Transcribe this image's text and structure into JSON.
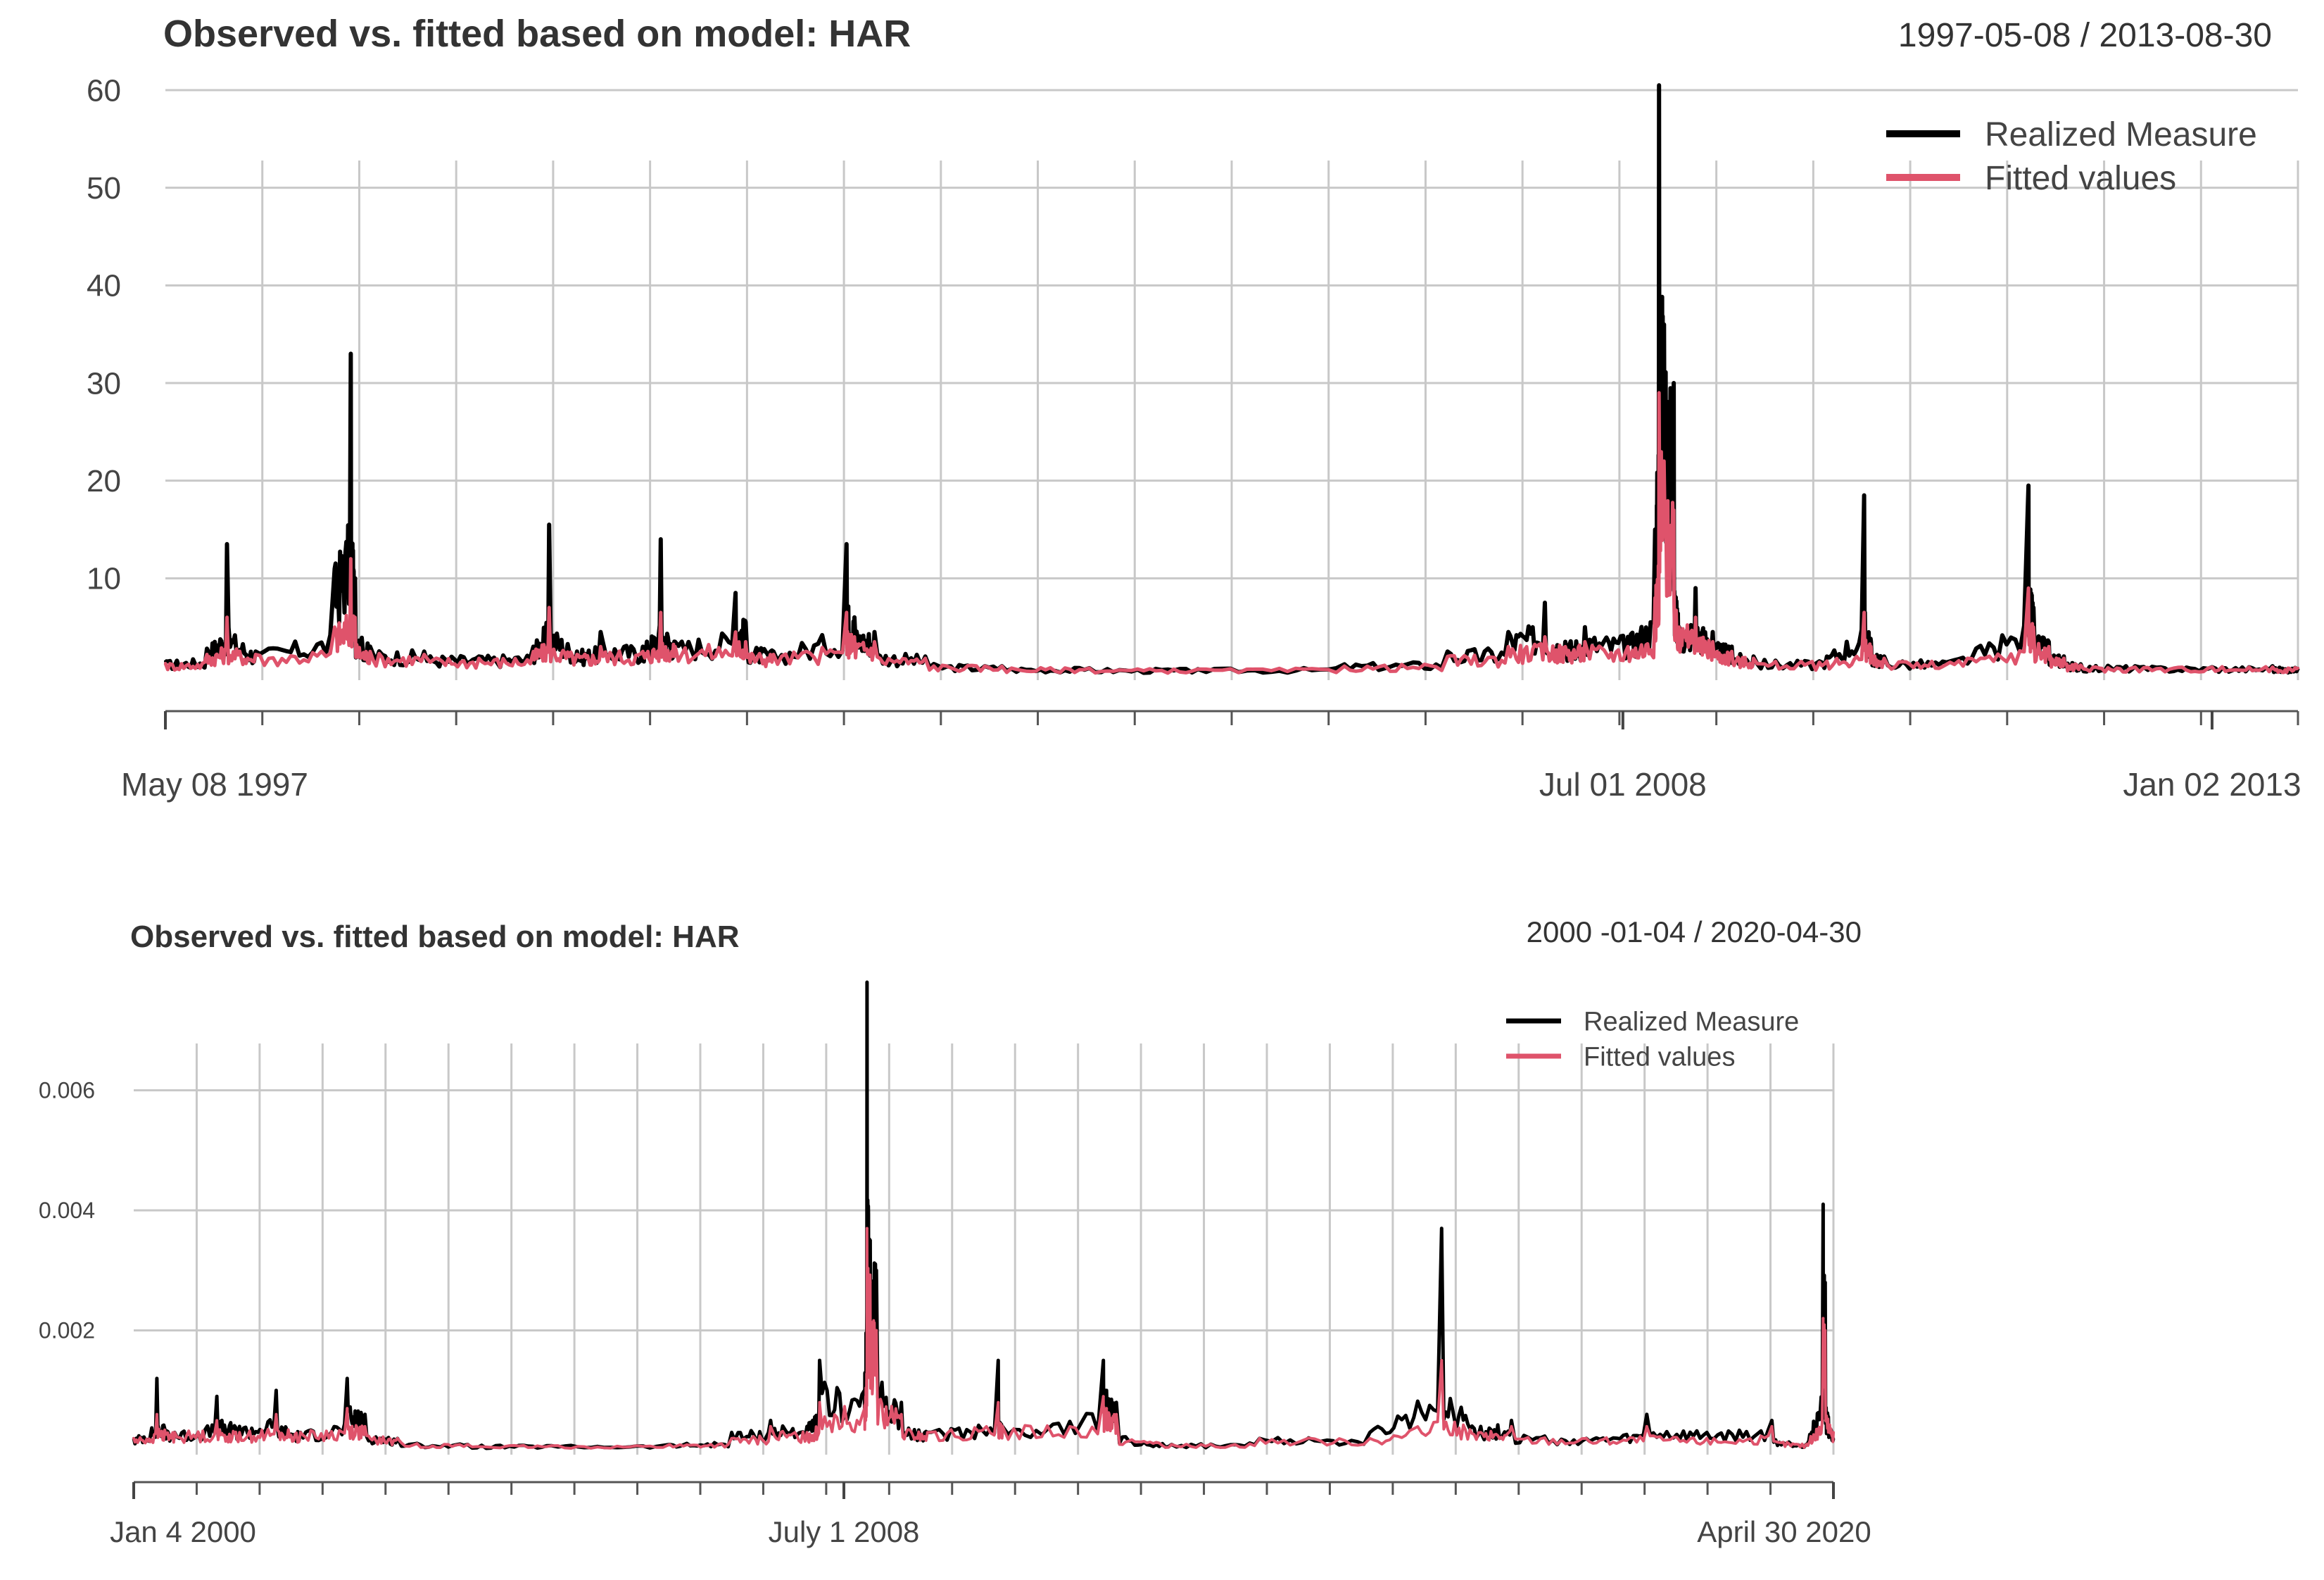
{
  "chart_data": [
    {
      "type": "line",
      "title": "Observed vs. fitted based on model:  HAR",
      "date_range": "1997-05-08 / 2013-08-30",
      "x_start": "1997-05-08",
      "x_end": "2013-08-30",
      "x_tick_labels": [
        {
          "date": "1997-05-08",
          "label": "May 08 1997"
        },
        {
          "date": "2008-07-01",
          "label": "Jul 01 2008"
        },
        {
          "date": "2013-01-02",
          "label": "Jan 02 2013"
        }
      ],
      "ylim": [
        0,
        60
      ],
      "y_ticks": [
        10,
        20,
        30,
        40,
        50,
        60
      ],
      "grid": true,
      "legend_position": "top-right",
      "colors": {
        "observed": "#000000",
        "fitted": "#df536b"
      },
      "series": [
        {
          "name": "Realized Measure",
          "x": [
            "1997-05-08",
            "1997-09-01",
            "1997-10-27",
            "1998-01-15",
            "1998-08-24",
            "1998-10-08",
            "1998-10-20",
            "1998-12-01",
            "1999-05-01",
            "1999-10-01",
            "2000-03-01",
            "2000-04-14",
            "2000-07-01",
            "2000-09-05",
            "2001-01-01",
            "2001-02-20",
            "2001-04-01",
            "2001-09-17",
            "2001-10-15",
            "2002-01-01",
            "2002-07-24",
            "2002-08-15",
            "2002-10-10",
            "2003-03-01",
            "2003-10-01",
            "2004-06-01",
            "2005-04-01",
            "2006-05-15",
            "2007-02-27",
            "2007-08-16",
            "2007-11-26",
            "2008-01-22",
            "2008-03-17",
            "2008-07-15",
            "2008-09-29",
            "2008-10-10",
            "2008-10-24",
            "2008-11-20",
            "2008-12-05",
            "2009-01-20",
            "2009-03-09",
            "2009-05-01",
            "2009-07-01",
            "2010-01-01",
            "2010-05-06",
            "2010-05-25",
            "2010-07-01",
            "2011-01-01",
            "2011-08-08",
            "2011-08-22",
            "2011-10-04",
            "2011-11-15",
            "2012-01-01",
            "2012-06-01",
            "2013-01-02",
            "2013-06-20",
            "2013-08-30"
          ],
          "values": [
            1.5,
            2.8,
            13.5,
            2.5,
            11.0,
            33.0,
            10.0,
            3.0,
            2.5,
            2.0,
            3.0,
            15.5,
            2.5,
            4.5,
            3.0,
            14.0,
            3.5,
            8.5,
            5.5,
            2.5,
            13.5,
            6.0,
            4.5,
            2.0,
            1.0,
            0.8,
            0.7,
            1.2,
            2.5,
            4.5,
            7.5,
            3.5,
            5.0,
            4.0,
            15.0,
            60.5,
            36.0,
            30.0,
            5.0,
            9.0,
            4.5,
            3.0,
            2.0,
            1.5,
            18.5,
            3.5,
            2.0,
            1.5,
            19.5,
            7.0,
            3.5,
            2.0,
            1.2,
            1.0,
            0.9,
            1.0,
            0.8
          ]
        },
        {
          "name": "Fitted values",
          "x": [
            "1997-05-08",
            "1997-09-01",
            "1997-10-27",
            "1998-01-15",
            "1998-08-24",
            "1998-10-08",
            "1998-10-20",
            "1998-12-01",
            "1999-05-01",
            "1999-10-01",
            "2000-03-01",
            "2000-04-14",
            "2000-07-01",
            "2000-09-05",
            "2001-01-01",
            "2001-02-20",
            "2001-04-01",
            "2001-09-17",
            "2001-10-15",
            "2002-01-01",
            "2002-07-24",
            "2002-08-15",
            "2002-10-10",
            "2003-03-01",
            "2003-10-01",
            "2004-06-01",
            "2005-04-01",
            "2006-05-15",
            "2007-02-27",
            "2007-08-16",
            "2007-11-26",
            "2008-01-22",
            "2008-03-17",
            "2008-07-15",
            "2008-09-29",
            "2008-10-10",
            "2008-10-24",
            "2008-11-20",
            "2008-12-05",
            "2009-01-20",
            "2009-03-09",
            "2009-05-01",
            "2009-07-01",
            "2010-01-01",
            "2010-05-06",
            "2010-05-25",
            "2010-07-01",
            "2011-01-01",
            "2011-08-08",
            "2011-08-22",
            "2011-10-04",
            "2011-11-15",
            "2012-01-01",
            "2012-06-01",
            "2013-01-02",
            "2013-06-20",
            "2013-08-30"
          ],
          "values": [
            1.3,
            2.2,
            6.0,
            2.2,
            5.0,
            12.0,
            6.0,
            2.5,
            2.2,
            1.8,
            2.5,
            7.0,
            2.2,
            3.0,
            2.5,
            6.5,
            3.0,
            4.5,
            3.5,
            2.2,
            6.5,
            4.0,
            3.5,
            1.8,
            1.0,
            0.8,
            0.7,
            1.0,
            2.0,
            3.0,
            4.0,
            3.0,
            3.5,
            3.0,
            8.0,
            29.0,
            22.0,
            17.0,
            5.0,
            6.0,
            3.5,
            2.5,
            1.8,
            1.4,
            6.5,
            3.0,
            1.8,
            1.4,
            9.0,
            5.0,
            3.0,
            1.8,
            1.1,
            0.9,
            0.9,
            0.9,
            0.8
          ]
        }
      ]
    },
    {
      "type": "line",
      "title": "Observed vs. fitted based on model:  HAR",
      "date_range": "2000 -01-04 / 2020-04-30",
      "x_start": "2000-01-04",
      "x_end": "2020-04-30",
      "x_tick_labels": [
        {
          "date": "2000-01-04",
          "label": "Jan 4 2000"
        },
        {
          "date": "2008-07-01",
          "label": "July 1 2008"
        },
        {
          "date": "2020-04-30",
          "label": "April 30 2020"
        }
      ],
      "ylim": [
        0,
        0.0078
      ],
      "y_ticks": [
        0.002,
        0.004,
        0.006
      ],
      "y_tick_labels": [
        "0.002",
        "0.004",
        "0.006"
      ],
      "grid": true,
      "legend_position": "top-right",
      "colors": {
        "observed": "#000000",
        "fitted": "#df536b"
      },
      "series": [
        {
          "name": "Realized Measure",
          "x": [
            "2000-01-04",
            "2000-04-14",
            "2000-07-01",
            "2001-01-01",
            "2001-04-10",
            "2001-09-17",
            "2002-01-01",
            "2002-07-24",
            "2002-10-10",
            "2003-03-01",
            "2004-01-01",
            "2005-01-01",
            "2006-06-01",
            "2007-02-27",
            "2007-08-16",
            "2008-01-22",
            "2008-03-17",
            "2008-09-29",
            "2008-10-10",
            "2008-10-24",
            "2008-11-20",
            "2009-03-09",
            "2009-07-01",
            "2010-05-06",
            "2010-05-25",
            "2011-08-08",
            "2011-08-22",
            "2011-10-04",
            "2012-06-01",
            "2013-06-20",
            "2014-10-15",
            "2015-08-24",
            "2016-02-11",
            "2016-06-24",
            "2017-05-17",
            "2018-02-05",
            "2018-10-25",
            "2019-08-05",
            "2020-01-01",
            "2020-03-16",
            "2020-03-25",
            "2020-04-30"
          ],
          "values": [
            0.0002,
            0.0012,
            0.0003,
            0.0009,
            0.0004,
            0.001,
            0.0003,
            0.0012,
            0.0006,
            0.0002,
            0.0001,
            8e-05,
            0.0001,
            0.0003,
            0.0005,
            0.0004,
            0.0015,
            0.001,
            0.0078,
            0.0035,
            0.003,
            0.0008,
            0.0003,
            0.0015,
            0.0004,
            0.0015,
            0.001,
            0.0008,
            0.0001,
            0.0002,
            0.0003,
            0.0037,
            0.0004,
            0.0005,
            0.0002,
            0.0006,
            0.0003,
            0.0005,
            0.0001,
            0.0041,
            0.0028,
            0.0002
          ]
        },
        {
          "name": "Fitted values",
          "x": [
            "2000-01-04",
            "2000-04-14",
            "2000-07-01",
            "2001-01-01",
            "2001-04-10",
            "2001-09-17",
            "2002-01-01",
            "2002-07-24",
            "2002-10-10",
            "2003-03-01",
            "2004-01-01",
            "2005-01-01",
            "2006-06-01",
            "2007-02-27",
            "2007-08-16",
            "2008-01-22",
            "2008-03-17",
            "2008-09-29",
            "2008-10-10",
            "2008-10-24",
            "2008-11-20",
            "2009-03-09",
            "2009-07-01",
            "2010-05-06",
            "2010-05-25",
            "2011-08-08",
            "2011-08-22",
            "2011-10-04",
            "2012-06-01",
            "2013-06-20",
            "2014-10-15",
            "2015-08-24",
            "2016-02-11",
            "2016-06-24",
            "2017-05-17",
            "2018-02-05",
            "2018-10-25",
            "2019-08-05",
            "2020-01-01",
            "2020-03-16",
            "2020-03-25",
            "2020-04-30"
          ],
          "values": [
            0.0002,
            0.0006,
            0.0003,
            0.0005,
            0.0003,
            0.0006,
            0.0003,
            0.0007,
            0.0004,
            0.0002,
            0.0001,
            8e-05,
            0.0001,
            0.0002,
            0.0004,
            0.0003,
            0.0008,
            0.0007,
            0.0037,
            0.0028,
            0.002,
            0.0006,
            0.0003,
            0.0008,
            0.0004,
            0.0009,
            0.0007,
            0.0006,
            0.0001,
            0.0002,
            0.0002,
            0.0015,
            0.0003,
            0.0004,
            0.0002,
            0.0004,
            0.0002,
            0.0004,
            0.0001,
            0.0022,
            0.002,
            0.0003
          ]
        }
      ]
    }
  ]
}
